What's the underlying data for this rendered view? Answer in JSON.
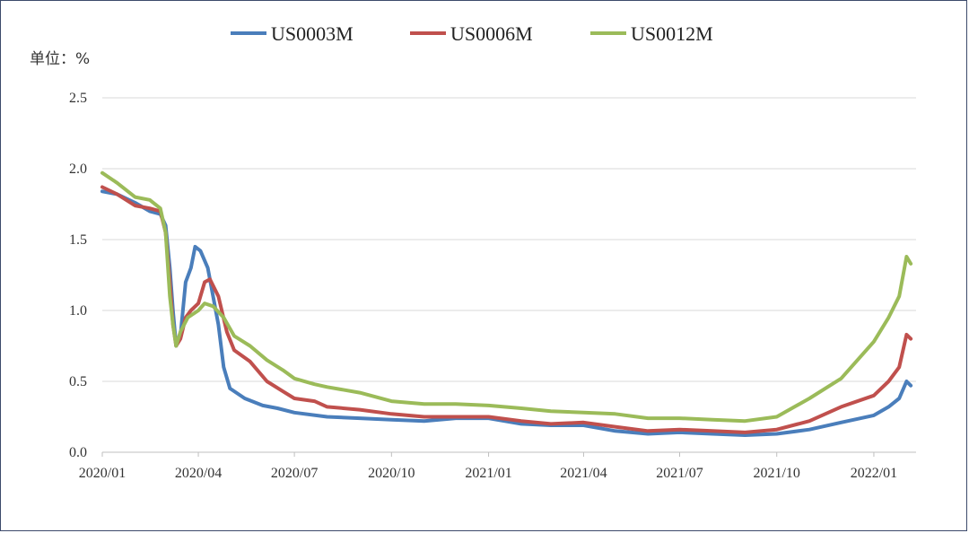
{
  "chart_data": {
    "type": "line",
    "ylabel": "单位：%",
    "ylim": [
      0,
      2.5
    ],
    "yticks": [
      "0.0",
      "0.5",
      "1.0",
      "1.5",
      "2.0",
      "2.5"
    ],
    "xticks": [
      "2020/01",
      "2020/04",
      "2020/07",
      "2020/10",
      "2021/01",
      "2021/04",
      "2021/07",
      "2021/10",
      "2022/01"
    ],
    "x_range": [
      "2020-01-01",
      "2022-02-10"
    ],
    "grid": "horizontal",
    "legend_position": "top-center",
    "series": [
      {
        "name": "US0003M",
        "color": "#4a7ebb",
        "points": [
          [
            "2020-01-01",
            1.84
          ],
          [
            "2020-01-15",
            1.82
          ],
          [
            "2020-02-01",
            1.76
          ],
          [
            "2020-02-15",
            1.7
          ],
          [
            "2020-02-25",
            1.68
          ],
          [
            "2020-03-01",
            1.6
          ],
          [
            "2020-03-05",
            1.3
          ],
          [
            "2020-03-08",
            1.0
          ],
          [
            "2020-03-11",
            0.75
          ],
          [
            "2020-03-15",
            0.82
          ],
          [
            "2020-03-20",
            1.2
          ],
          [
            "2020-03-25",
            1.3
          ],
          [
            "2020-03-29",
            1.45
          ],
          [
            "2020-04-03",
            1.42
          ],
          [
            "2020-04-10",
            1.3
          ],
          [
            "2020-04-15",
            1.1
          ],
          [
            "2020-04-20",
            0.9
          ],
          [
            "2020-04-25",
            0.6
          ],
          [
            "2020-05-01",
            0.45
          ],
          [
            "2020-05-15",
            0.38
          ],
          [
            "2020-06-01",
            0.33
          ],
          [
            "2020-06-15",
            0.31
          ],
          [
            "2020-07-01",
            0.28
          ],
          [
            "2020-08-01",
            0.25
          ],
          [
            "2020-09-01",
            0.24
          ],
          [
            "2020-10-01",
            0.23
          ],
          [
            "2020-11-01",
            0.22
          ],
          [
            "2020-12-01",
            0.24
          ],
          [
            "2021-01-01",
            0.24
          ],
          [
            "2021-02-01",
            0.2
          ],
          [
            "2021-03-01",
            0.19
          ],
          [
            "2021-04-01",
            0.19
          ],
          [
            "2021-05-01",
            0.15
          ],
          [
            "2021-06-01",
            0.13
          ],
          [
            "2021-07-01",
            0.14
          ],
          [
            "2021-08-01",
            0.13
          ],
          [
            "2021-09-01",
            0.12
          ],
          [
            "2021-10-01",
            0.13
          ],
          [
            "2021-11-01",
            0.16
          ],
          [
            "2021-12-01",
            0.21
          ],
          [
            "2022-01-01",
            0.26
          ],
          [
            "2022-01-15",
            0.32
          ],
          [
            "2022-01-25",
            0.38
          ],
          [
            "2022-02-01",
            0.5
          ],
          [
            "2022-02-05",
            0.47
          ]
        ]
      },
      {
        "name": "US0006M",
        "color": "#c0504d",
        "points": [
          [
            "2020-01-01",
            1.87
          ],
          [
            "2020-01-15",
            1.82
          ],
          [
            "2020-02-01",
            1.74
          ],
          [
            "2020-02-15",
            1.72
          ],
          [
            "2020-02-25",
            1.7
          ],
          [
            "2020-03-01",
            1.55
          ],
          [
            "2020-03-05",
            1.2
          ],
          [
            "2020-03-08",
            0.9
          ],
          [
            "2020-03-11",
            0.75
          ],
          [
            "2020-03-15",
            0.8
          ],
          [
            "2020-03-20",
            0.95
          ],
          [
            "2020-03-25",
            1.0
          ],
          [
            "2020-04-01",
            1.05
          ],
          [
            "2020-04-07",
            1.2
          ],
          [
            "2020-04-12",
            1.22
          ],
          [
            "2020-04-20",
            1.1
          ],
          [
            "2020-04-28",
            0.85
          ],
          [
            "2020-05-05",
            0.72
          ],
          [
            "2020-05-20",
            0.64
          ],
          [
            "2020-06-05",
            0.5
          ],
          [
            "2020-06-20",
            0.43
          ],
          [
            "2020-07-01",
            0.38
          ],
          [
            "2020-07-20",
            0.36
          ],
          [
            "2020-08-01",
            0.32
          ],
          [
            "2020-09-01",
            0.3
          ],
          [
            "2020-10-01",
            0.27
          ],
          [
            "2020-11-01",
            0.25
          ],
          [
            "2020-12-01",
            0.25
          ],
          [
            "2021-01-01",
            0.25
          ],
          [
            "2021-02-01",
            0.22
          ],
          [
            "2021-03-01",
            0.2
          ],
          [
            "2021-04-01",
            0.21
          ],
          [
            "2021-05-01",
            0.18
          ],
          [
            "2021-06-01",
            0.15
          ],
          [
            "2021-07-01",
            0.16
          ],
          [
            "2021-08-01",
            0.15
          ],
          [
            "2021-09-01",
            0.14
          ],
          [
            "2021-10-01",
            0.16
          ],
          [
            "2021-11-01",
            0.22
          ],
          [
            "2021-12-01",
            0.32
          ],
          [
            "2022-01-01",
            0.4
          ],
          [
            "2022-01-15",
            0.5
          ],
          [
            "2022-01-25",
            0.6
          ],
          [
            "2022-02-01",
            0.83
          ],
          [
            "2022-02-05",
            0.8
          ]
        ]
      },
      {
        "name": "US0012M",
        "color": "#9bbb59",
        "points": [
          [
            "2020-01-01",
            1.97
          ],
          [
            "2020-01-15",
            1.9
          ],
          [
            "2020-02-01",
            1.8
          ],
          [
            "2020-02-15",
            1.78
          ],
          [
            "2020-02-25",
            1.72
          ],
          [
            "2020-03-01",
            1.55
          ],
          [
            "2020-03-05",
            1.1
          ],
          [
            "2020-03-08",
            0.9
          ],
          [
            "2020-03-11",
            0.75
          ],
          [
            "2020-03-15",
            0.85
          ],
          [
            "2020-03-22",
            0.95
          ],
          [
            "2020-04-01",
            1.0
          ],
          [
            "2020-04-07",
            1.05
          ],
          [
            "2020-04-15",
            1.03
          ],
          [
            "2020-04-25",
            0.95
          ],
          [
            "2020-05-05",
            0.82
          ],
          [
            "2020-05-20",
            0.75
          ],
          [
            "2020-06-05",
            0.65
          ],
          [
            "2020-06-20",
            0.58
          ],
          [
            "2020-07-01",
            0.52
          ],
          [
            "2020-07-20",
            0.48
          ],
          [
            "2020-08-01",
            0.46
          ],
          [
            "2020-09-01",
            0.42
          ],
          [
            "2020-10-01",
            0.36
          ],
          [
            "2020-11-01",
            0.34
          ],
          [
            "2020-12-01",
            0.34
          ],
          [
            "2021-01-01",
            0.33
          ],
          [
            "2021-02-01",
            0.31
          ],
          [
            "2021-03-01",
            0.29
          ],
          [
            "2021-04-01",
            0.28
          ],
          [
            "2021-05-01",
            0.27
          ],
          [
            "2021-06-01",
            0.24
          ],
          [
            "2021-07-01",
            0.24
          ],
          [
            "2021-08-01",
            0.23
          ],
          [
            "2021-09-01",
            0.22
          ],
          [
            "2021-10-01",
            0.25
          ],
          [
            "2021-11-01",
            0.38
          ],
          [
            "2021-12-01",
            0.52
          ],
          [
            "2022-01-01",
            0.78
          ],
          [
            "2022-01-15",
            0.95
          ],
          [
            "2022-01-25",
            1.1
          ],
          [
            "2022-02-01",
            1.38
          ],
          [
            "2022-02-05",
            1.33
          ]
        ]
      }
    ]
  }
}
